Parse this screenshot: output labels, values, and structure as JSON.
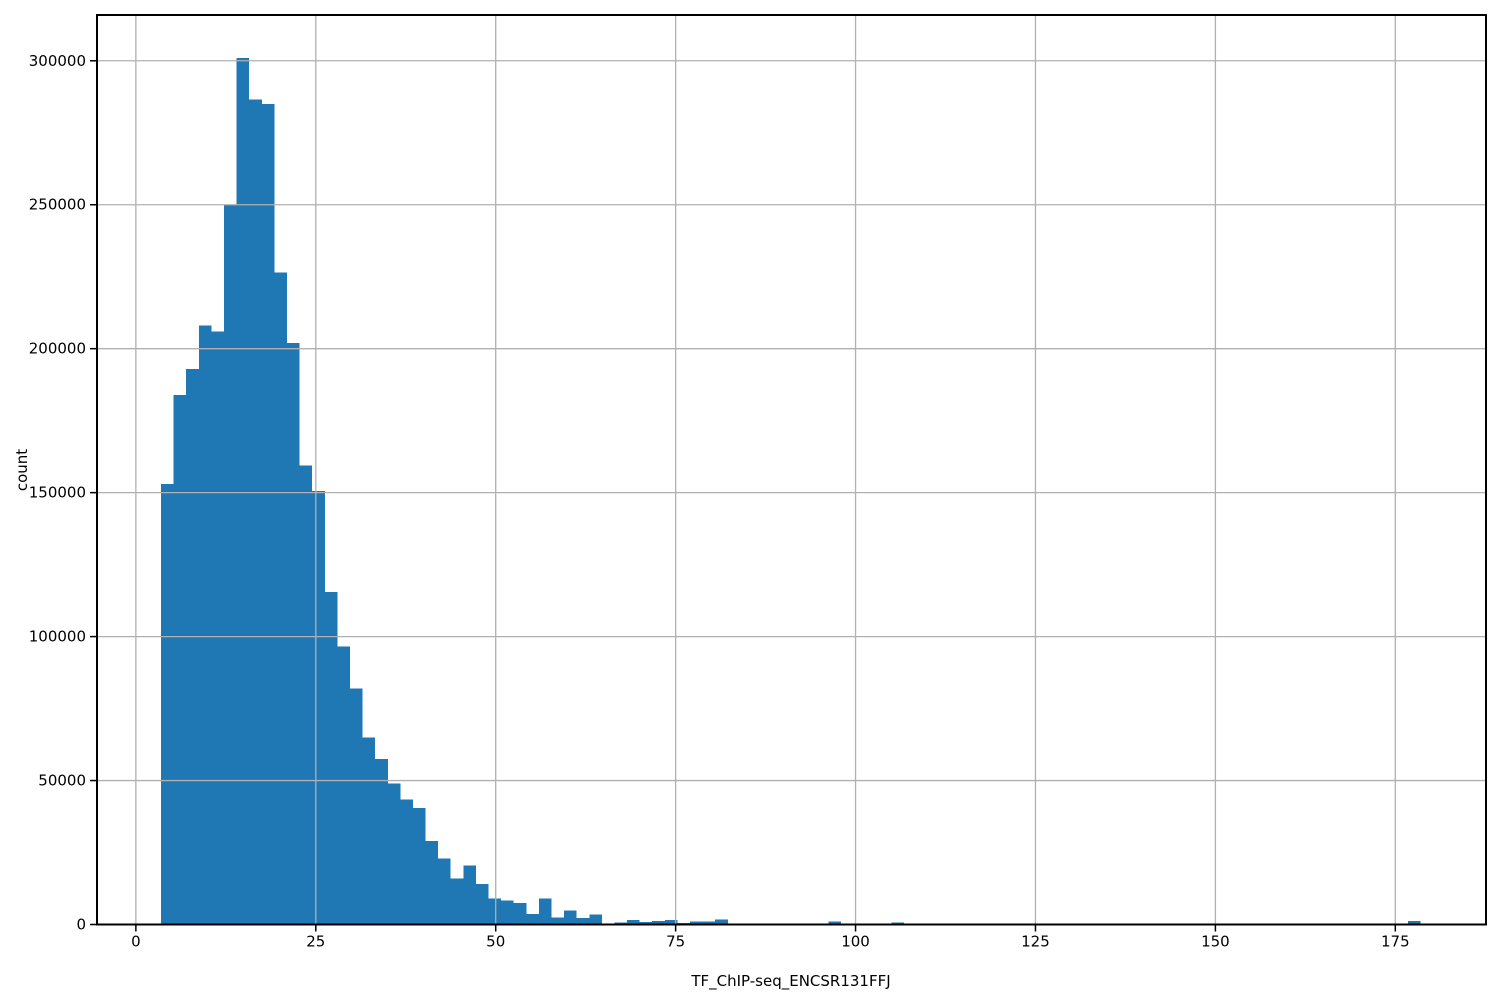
{
  "figure": {
    "background": "#ffffff"
  },
  "chart_data": {
    "type": "histogram",
    "title": "",
    "xlabel": "TF_ChIP-seq_ENCSR131FFJ",
    "ylabel": "count",
    "bar_color": "#1f77b4",
    "grid": true,
    "grid_color": "#b0b0b0",
    "axis_color": "#000000",
    "legend": "none",
    "x_ticks": [
      0,
      25,
      50,
      75,
      100,
      125,
      150,
      175
    ],
    "y_ticks": [
      0,
      50000,
      100000,
      150000,
      200000,
      250000,
      300000
    ],
    "xlim": [
      -5.4,
      187.6
    ],
    "ylim": [
      0,
      315900
    ],
    "bins": {
      "start": 3.5,
      "width": 1.75,
      "count": 100
    },
    "values": [
      153000,
      184000,
      193000,
      208000,
      206000,
      250000,
      301000,
      286500,
      285000,
      226500,
      202000,
      159500,
      150500,
      115500,
      96500,
      82000,
      65000,
      57500,
      49000,
      43500,
      40500,
      29000,
      23000,
      16000,
      20500,
      14000,
      9000,
      8400,
      7500,
      3700,
      9000,
      2500,
      4900,
      2200,
      3500,
      200,
      700,
      1600,
      900,
      1300,
      1600,
      600,
      1000,
      1000,
      1800,
      100,
      400,
      150,
      0,
      0,
      0,
      0,
      0,
      1100,
      0,
      0,
      0,
      0,
      700,
      0,
      0,
      0,
      0,
      0,
      400,
      0,
      0,
      0,
      0,
      0,
      0,
      0,
      0,
      0,
      0,
      0,
      0,
      0,
      0,
      0,
      0,
      0,
      0,
      0,
      0,
      0,
      0,
      0,
      0,
      0,
      0,
      0,
      0,
      0,
      0,
      0,
      0,
      0,
      0,
      1200
    ]
  }
}
